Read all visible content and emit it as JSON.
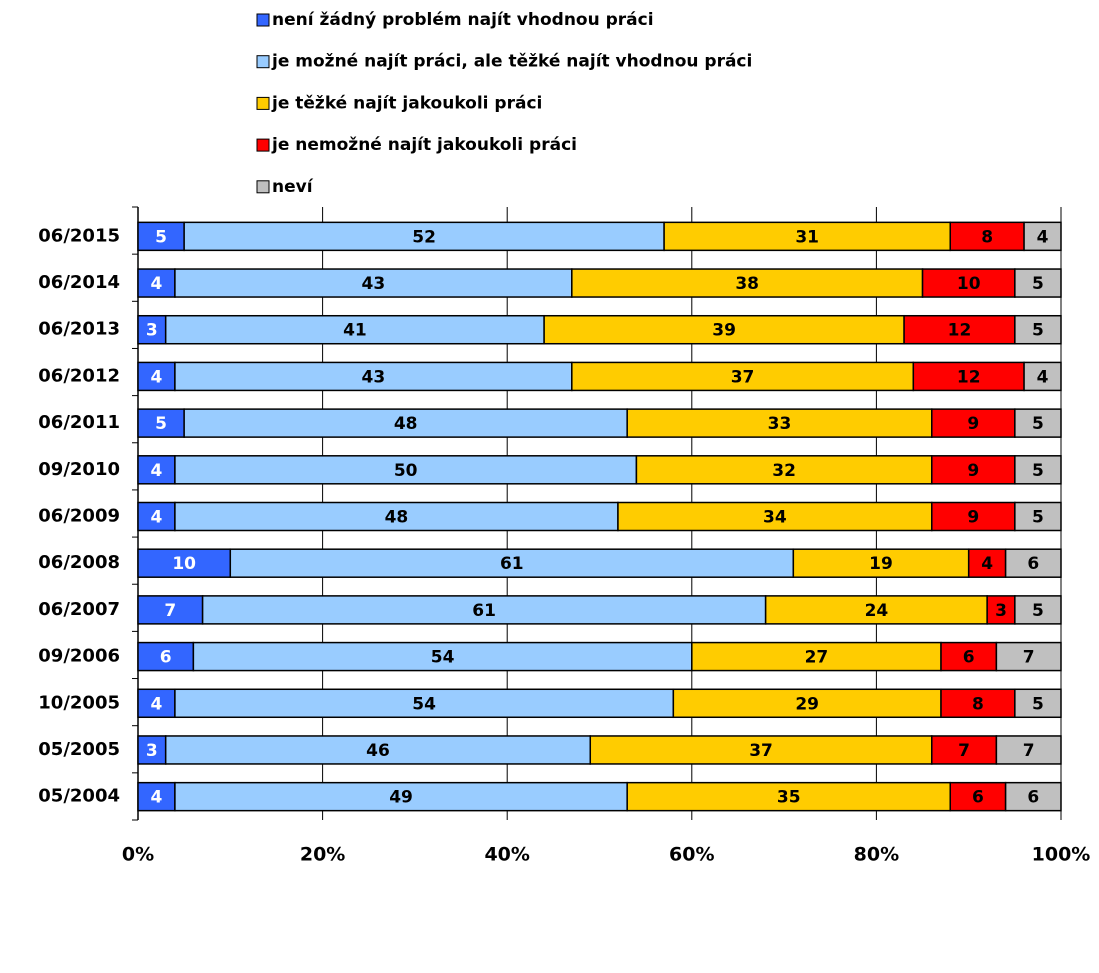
{
  "chart_data": {
    "type": "bar",
    "orientation": "horizontal",
    "stacked": true,
    "categories": [
      "06/2015",
      "06/2014",
      "06/2013",
      "06/2012",
      "06/2011",
      "09/2010",
      "06/2009",
      "06/2008",
      "06/2007",
      "09/2006",
      "10/2005",
      "05/2005",
      "05/2004"
    ],
    "series": [
      {
        "name": "není žádný problém najít vhodnou práci",
        "color": "#3366ff",
        "values": [
          5,
          4,
          3,
          4,
          5,
          4,
          4,
          10,
          7,
          6,
          4,
          3,
          4
        ]
      },
      {
        "name": "je možné najít práci, ale těžké najít vhodnou práci",
        "color": "#99ccff",
        "values": [
          52,
          43,
          41,
          43,
          48,
          50,
          48,
          61,
          61,
          54,
          54,
          46,
          49
        ]
      },
      {
        "name": "je těžké najít jakoukoli práci",
        "color": "#ffcc00",
        "values": [
          31,
          38,
          39,
          37,
          33,
          32,
          34,
          19,
          24,
          27,
          29,
          37,
          35
        ]
      },
      {
        "name": "je nemožné najít jakoukoli práci",
        "color": "#ff0000",
        "values": [
          8,
          10,
          12,
          12,
          9,
          9,
          9,
          4,
          3,
          6,
          8,
          7,
          6
        ]
      },
      {
        "name": "neví",
        "color": "#c0c0c0",
        "values": [
          4,
          5,
          5,
          4,
          5,
          5,
          5,
          6,
          5,
          7,
          5,
          7,
          6
        ]
      }
    ],
    "xlim": [
      0,
      100
    ],
    "xticks": [
      {
        "value": 0,
        "label": "0%"
      },
      {
        "value": 20,
        "label": "20%"
      },
      {
        "value": 40,
        "label": "40%"
      },
      {
        "value": 60,
        "label": "60%"
      },
      {
        "value": 80,
        "label": "80%"
      },
      {
        "value": 100,
        "label": "100%"
      }
    ],
    "grid": true,
    "legend": "top"
  }
}
